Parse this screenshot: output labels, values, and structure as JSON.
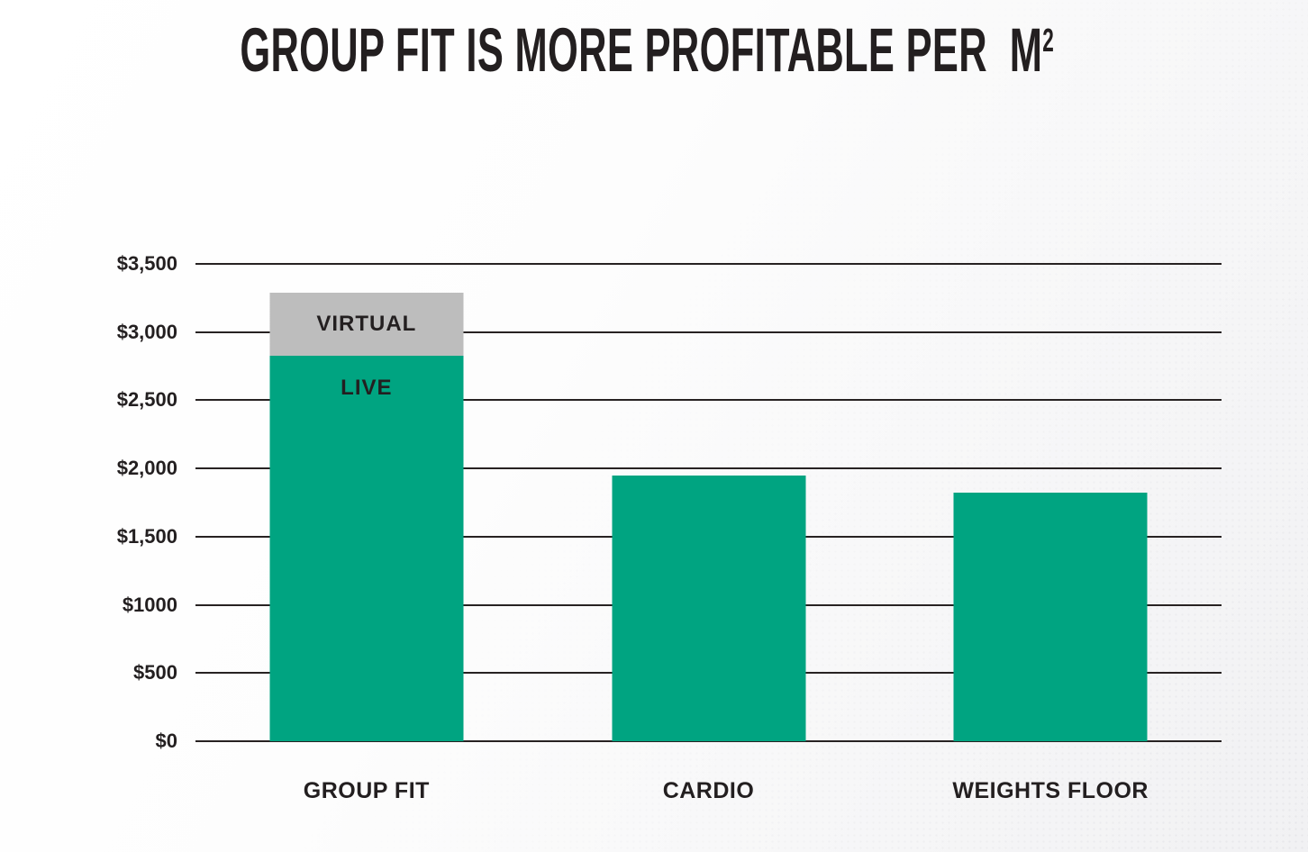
{
  "title": {
    "main": "GROUP FIT IS MORE PROFITABLE PER  M",
    "superscript": "2"
  },
  "colors": {
    "green": "#00A481",
    "gray": "#BDBDBD",
    "text": "#231F20",
    "gridline": "#272222",
    "background_from": "#FFFFFF",
    "background_to": "#F1F1F3"
  },
  "chart_data": {
    "type": "bar",
    "stacked": true,
    "title": "GROUP FIT IS MORE PROFITABLE PER M²",
    "categories": [
      "GROUP FIT",
      "CARDIO",
      "WEIGHTS FLOOR"
    ],
    "series": [
      {
        "name": "LIVE",
        "color_key": "green",
        "values": [
          2830,
          1950,
          1820
        ]
      },
      {
        "name": "VIRTUAL",
        "color_key": "gray",
        "values": [
          460,
          0,
          0
        ]
      }
    ],
    "annotations": [
      {
        "text": "LIVE",
        "category": "GROUP FIT",
        "series": "LIVE",
        "placement": "top"
      },
      {
        "text": "VIRTUAL",
        "category": "GROUP FIT",
        "series": "VIRTUAL",
        "placement": "center"
      }
    ],
    "yticks": [
      {
        "label": "$3,500",
        "value": 3500
      },
      {
        "label": "$3,000",
        "value": 3000
      },
      {
        "label": "$2,500",
        "value": 2500
      },
      {
        "label": "$2,000",
        "value": 2000
      },
      {
        "label": "$1,500",
        "value": 1500
      },
      {
        "label": "$1000",
        "value": 1000
      },
      {
        "label": "$500",
        "value": 500
      },
      {
        "label": "$0",
        "value": 0
      }
    ],
    "ylim": [
      0,
      3500
    ],
    "grid": true,
    "legend": "none",
    "xlabel": "",
    "ylabel": ""
  }
}
